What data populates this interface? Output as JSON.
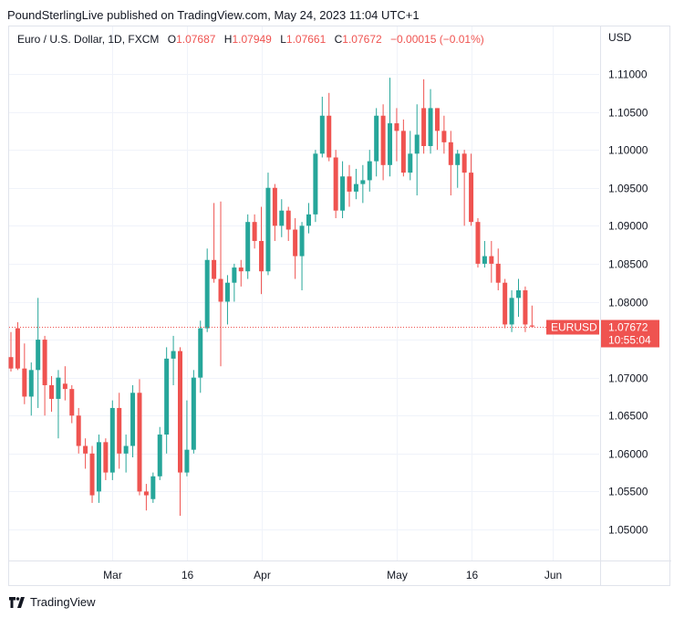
{
  "header": {
    "publisher_line": "PoundSterlingLive published on TradingView.com, May 24, 2023 11:04 UTC+1"
  },
  "legend": {
    "symbol": "Euro / U.S. Dollar, 1D, FXCM",
    "open_label": "O",
    "open": "1.07687",
    "high_label": "H",
    "high": "1.07949",
    "low_label": "L",
    "low": "1.07661",
    "close_label": "C",
    "close": "1.07672",
    "change": "−0.00015 (−0.01%)"
  },
  "price_tag": {
    "symbol": "EURUSD",
    "price": "1.07672",
    "countdown": "10:55:04"
  },
  "footer": {
    "brand": "TradingView"
  },
  "colors": {
    "up": "#26a69a",
    "down": "#ef5350",
    "grid": "#f0f3fa",
    "border": "#e0e3eb"
  },
  "chart_data": {
    "type": "candlestick",
    "y_unit_label": "USD",
    "ylim": [
      1.0455,
      1.1155
    ],
    "y_ticks": [
      1.05,
      1.055,
      1.06,
      1.065,
      1.07,
      1.075,
      1.08,
      1.085,
      1.09,
      1.095,
      1.1,
      1.105,
      1.11
    ],
    "y_tick_labels": [
      "1.05000",
      "1.05500",
      "1.06000",
      "1.06500",
      "1.07000",
      "1.07500",
      "1.08000",
      "1.08500",
      "1.09000",
      "1.09500",
      "1.10000",
      "1.10500",
      "1.11000"
    ],
    "x_labels": [
      {
        "label": "Mar",
        "index": 15
      },
      {
        "label": "16",
        "index": 26
      },
      {
        "label": "Apr",
        "index": 37
      },
      {
        "label": "May",
        "index": 57
      },
      {
        "label": "16",
        "index": 68
      },
      {
        "label": "Jun",
        "index": 80
      }
    ],
    "last_price": 1.07672,
    "candles": [
      {
        "o": 1.0727,
        "h": 1.076,
        "l": 1.0708,
        "c": 1.0712
      },
      {
        "o": 1.0765,
        "h": 1.0773,
        "l": 1.071,
        "c": 1.0712
      },
      {
        "o": 1.0712,
        "h": 1.0745,
        "l": 1.0665,
        "c": 1.0675
      },
      {
        "o": 1.0675,
        "h": 1.072,
        "l": 1.065,
        "c": 1.071
      },
      {
        "o": 1.071,
        "h": 1.0805,
        "l": 1.066,
        "c": 1.075
      },
      {
        "o": 1.075,
        "h": 1.0755,
        "l": 1.065,
        "c": 1.069
      },
      {
        "o": 1.069,
        "h": 1.0702,
        "l": 1.0655,
        "c": 1.0672
      },
      {
        "o": 1.0672,
        "h": 1.071,
        "l": 1.062,
        "c": 1.07
      },
      {
        "o": 1.0692,
        "h": 1.0715,
        "l": 1.067,
        "c": 1.0685
      },
      {
        "o": 1.0685,
        "h": 1.069,
        "l": 1.064,
        "c": 1.065
      },
      {
        "o": 1.065,
        "h": 1.066,
        "l": 1.06,
        "c": 1.061
      },
      {
        "o": 1.061,
        "h": 1.062,
        "l": 1.058,
        "c": 1.06
      },
      {
        "o": 1.06,
        "h": 1.061,
        "l": 1.0535,
        "c": 1.0545
      },
      {
        "o": 1.055,
        "h": 1.0625,
        "l": 1.0535,
        "c": 1.0615
      },
      {
        "o": 1.0615,
        "h": 1.062,
        "l": 1.0565,
        "c": 1.0575
      },
      {
        "o": 1.0575,
        "h": 1.067,
        "l": 1.0565,
        "c": 1.066
      },
      {
        "o": 1.066,
        "h": 1.068,
        "l": 1.058,
        "c": 1.06
      },
      {
        "o": 1.06,
        "h": 1.0625,
        "l": 1.0575,
        "c": 1.061
      },
      {
        "o": 1.061,
        "h": 1.069,
        "l": 1.0595,
        "c": 1.068
      },
      {
        "o": 1.068,
        "h": 1.0698,
        "l": 1.0545,
        "c": 1.055
      },
      {
        "o": 1.055,
        "h": 1.056,
        "l": 1.0525,
        "c": 1.0545
      },
      {
        "o": 1.054,
        "h": 1.0575,
        "l": 1.0535,
        "c": 1.057
      },
      {
        "o": 1.057,
        "h": 1.0635,
        "l": 1.0565,
        "c": 1.0625
      },
      {
        "o": 1.0625,
        "h": 1.074,
        "l": 1.06,
        "c": 1.0725
      },
      {
        "o": 1.0725,
        "h": 1.0755,
        "l": 1.069,
        "c": 1.0735
      },
      {
        "o": 1.0735,
        "h": 1.074,
        "l": 1.0518,
        "c": 1.0575
      },
      {
        "o": 1.0575,
        "h": 1.067,
        "l": 1.057,
        "c": 1.0605
      },
      {
        "o": 1.0605,
        "h": 1.071,
        "l": 1.06,
        "c": 1.07
      },
      {
        "o": 1.07,
        "h": 1.0775,
        "l": 1.068,
        "c": 1.0765
      },
      {
        "o": 1.0765,
        "h": 1.087,
        "l": 1.076,
        "c": 1.0855
      },
      {
        "o": 1.0855,
        "h": 1.093,
        "l": 1.0825,
        "c": 1.083
      },
      {
        "o": 1.083,
        "h": 1.0932,
        "l": 1.0715,
        "c": 1.08
      },
      {
        "o": 1.08,
        "h": 1.0835,
        "l": 1.077,
        "c": 1.0825
      },
      {
        "o": 1.0825,
        "h": 1.085,
        "l": 1.08,
        "c": 1.0845
      },
      {
        "o": 1.0845,
        "h": 1.0855,
        "l": 1.082,
        "c": 1.084
      },
      {
        "o": 1.084,
        "h": 1.0915,
        "l": 1.083,
        "c": 1.0905
      },
      {
        "o": 1.0905,
        "h": 1.0915,
        "l": 1.087,
        "c": 1.088
      },
      {
        "o": 1.088,
        "h": 1.0925,
        "l": 1.081,
        "c": 1.084
      },
      {
        "o": 1.084,
        "h": 1.097,
        "l": 1.0835,
        "c": 1.095
      },
      {
        "o": 1.095,
        "h": 1.0955,
        "l": 1.088,
        "c": 1.09
      },
      {
        "o": 1.09,
        "h": 1.0935,
        "l": 1.0885,
        "c": 1.092
      },
      {
        "o": 1.092,
        "h": 1.0925,
        "l": 1.088,
        "c": 1.0895
      },
      {
        "o": 1.0895,
        "h": 1.091,
        "l": 1.083,
        "c": 1.086
      },
      {
        "o": 1.086,
        "h": 1.0905,
        "l": 1.0815,
        "c": 1.09
      },
      {
        "o": 1.09,
        "h": 1.093,
        "l": 1.089,
        "c": 1.0915
      },
      {
        "o": 1.0915,
        "h": 1.1,
        "l": 1.0905,
        "c": 1.0995
      },
      {
        "o": 1.0995,
        "h": 1.107,
        "l": 1.099,
        "c": 1.1045
      },
      {
        "o": 1.1045,
        "h": 1.1075,
        "l": 1.0985,
        "c": 1.099
      },
      {
        "o": 1.099,
        "h": 1.1,
        "l": 1.091,
        "c": 1.092
      },
      {
        "o": 1.092,
        "h": 1.0985,
        "l": 1.091,
        "c": 1.0965
      },
      {
        "o": 1.0965,
        "h": 1.098,
        "l": 1.0925,
        "c": 1.0945
      },
      {
        "o": 1.0945,
        "h": 1.0975,
        "l": 1.0935,
        "c": 1.0955
      },
      {
        "o": 1.0955,
        "h": 1.098,
        "l": 1.093,
        "c": 1.096
      },
      {
        "o": 1.096,
        "h": 1.1,
        "l": 1.0945,
        "c": 1.0985
      },
      {
        "o": 1.0985,
        "h": 1.1055,
        "l": 1.0965,
        "c": 1.1045
      },
      {
        "o": 1.1045,
        "h": 1.106,
        "l": 1.096,
        "c": 1.098
      },
      {
        "o": 1.098,
        "h": 1.1095,
        "l": 1.0965,
        "c": 1.1035
      },
      {
        "o": 1.1035,
        "h": 1.1055,
        "l": 1.0985,
        "c": 1.1025
      },
      {
        "o": 1.1025,
        "h": 1.104,
        "l": 1.0965,
        "c": 1.097
      },
      {
        "o": 1.097,
        "h": 1.1025,
        "l": 1.096,
        "c": 1.0995
      },
      {
        "o": 1.0995,
        "h": 1.106,
        "l": 1.094,
        "c": 1.102
      },
      {
        "o": 1.1055,
        "h": 1.1093,
        "l": 1.0995,
        "c": 1.1005
      },
      {
        "o": 1.1005,
        "h": 1.108,
        "l": 1.0995,
        "c": 1.1055
      },
      {
        "o": 1.1055,
        "h": 1.1055,
        "l": 1.1,
        "c": 1.1025
      },
      {
        "o": 1.1025,
        "h": 1.1045,
        "l": 1.0995,
        "c": 1.101
      },
      {
        "o": 1.101,
        "h": 1.1025,
        "l": 1.094,
        "c": 1.098
      },
      {
        "o": 1.098,
        "h": 1.1,
        "l": 1.095,
        "c": 1.0995
      },
      {
        "o": 1.0995,
        "h": 1.1,
        "l": 1.09,
        "c": 1.097
      },
      {
        "o": 1.097,
        "h": 1.0995,
        "l": 1.09,
        "c": 1.0905
      },
      {
        "o": 1.0905,
        "h": 1.091,
        "l": 1.0845,
        "c": 1.085
      },
      {
        "o": 1.085,
        "h": 1.088,
        "l": 1.0845,
        "c": 1.086
      },
      {
        "o": 1.086,
        "h": 1.088,
        "l": 1.0825,
        "c": 1.085
      },
      {
        "o": 1.085,
        "h": 1.087,
        "l": 1.0815,
        "c": 1.0825
      },
      {
        "o": 1.0825,
        "h": 1.083,
        "l": 1.0765,
        "c": 1.077
      },
      {
        "o": 1.077,
        "h": 1.0815,
        "l": 1.076,
        "c": 1.0805
      },
      {
        "o": 1.0805,
        "h": 1.083,
        "l": 1.078,
        "c": 1.0815
      },
      {
        "o": 1.0815,
        "h": 1.082,
        "l": 1.076,
        "c": 1.077
      },
      {
        "o": 1.07687,
        "h": 1.07949,
        "l": 1.07661,
        "c": 1.07672
      }
    ]
  }
}
